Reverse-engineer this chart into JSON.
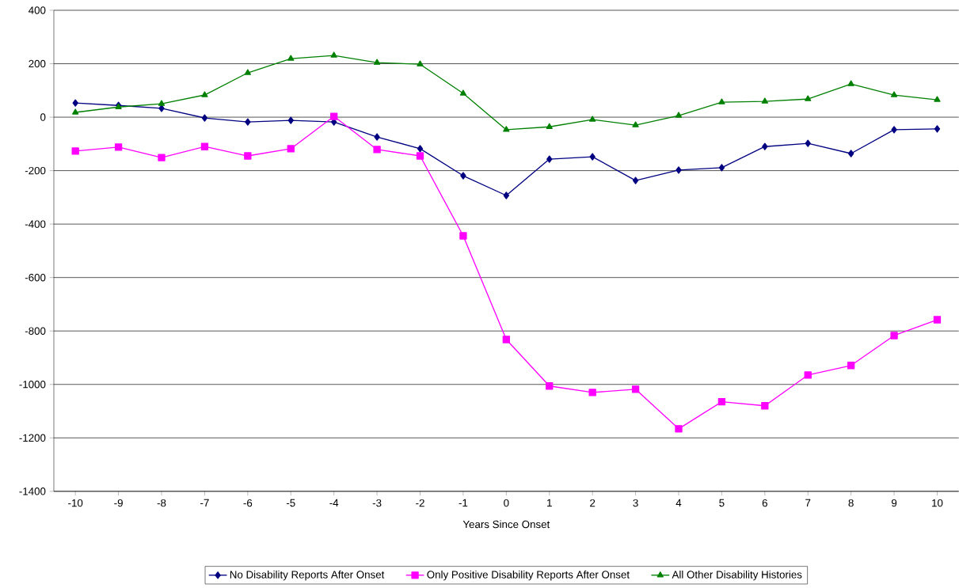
{
  "chart_data": {
    "type": "line",
    "xlabel": "Years Since Onset",
    "categories": [
      "-10",
      "-9",
      "-8",
      "-7",
      "-6",
      "-5",
      "-4",
      "-3",
      "-2",
      "-1",
      "0",
      "1",
      "2",
      "3",
      "4",
      "5",
      "6",
      "7",
      "8",
      "9",
      "10"
    ],
    "ylim": [
      -1400,
      400
    ],
    "yticks": [
      -1400,
      -1200,
      -1000,
      -800,
      -600,
      -400,
      -200,
      0,
      200,
      400
    ],
    "grid": "y",
    "legend": "bottom",
    "line_style": "solid",
    "series": [
      {
        "name": "No Disability Reports After Onset",
        "color": "#000080",
        "marker": "diamond",
        "values": [
          53,
          44,
          33,
          -3,
          -18,
          -12,
          -18,
          -74,
          -118,
          -219,
          -293,
          -157,
          -148,
          -237,
          -198,
          -189,
          -110,
          -98,
          -136,
          -47,
          -44
        ]
      },
      {
        "name": "Only Positive Disability Reports After Onset",
        "color": "#ff00ff",
        "marker": "square",
        "values": [
          -127,
          -112,
          -151,
          -110,
          -145,
          -118,
          3,
          -121,
          -145,
          -444,
          -832,
          -1006,
          -1030,
          -1018,
          -1166,
          -1065,
          -1080,
          -965,
          -929,
          -817,
          -758
        ]
      },
      {
        "name": "All Other Disability Histories",
        "color": "#008000",
        "marker": "triangle",
        "values": [
          18,
          38,
          50,
          83,
          166,
          219,
          231,
          204,
          198,
          89,
          -47,
          -36,
          -9,
          -30,
          6,
          56,
          59,
          68,
          124,
          83,
          65
        ]
      }
    ]
  }
}
